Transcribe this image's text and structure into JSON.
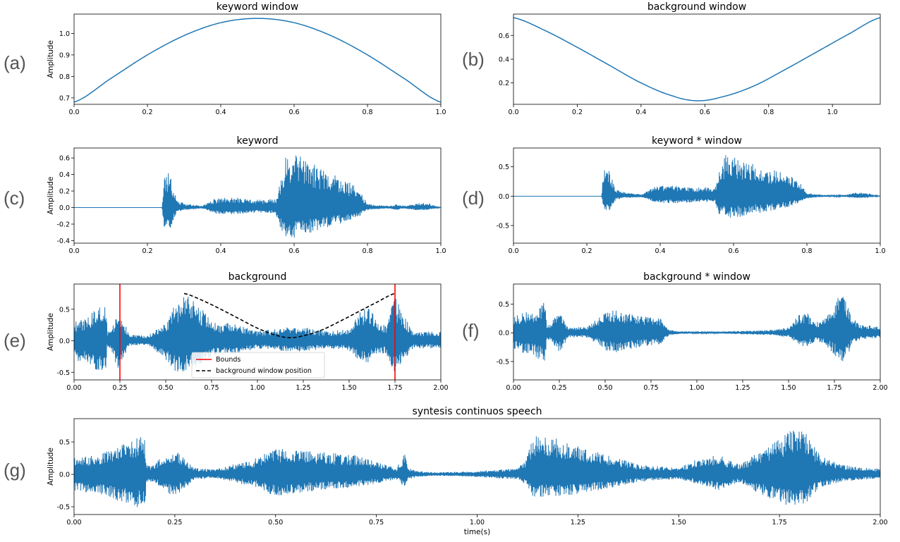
{
  "figure": {
    "colors": {
      "wave": "#1f77b4",
      "bounds": "#ff0000",
      "window_pos": "#000000",
      "axes": "#000000"
    }
  },
  "chart_data": [
    {
      "id": "a",
      "panel_label": "(a)",
      "type": "line",
      "title": "keyword window",
      "xlabel": "",
      "ylabel": "Amplitude",
      "xlim": [
        0,
        1
      ],
      "ylim": [
        0.67,
        1.09
      ],
      "xticks": [
        0,
        0.2,
        0.4,
        0.6,
        0.8,
        1.0
      ],
      "xtick_labels": [
        "0.0",
        "0.2",
        "0.4",
        "0.6",
        "0.8",
        "1.0"
      ],
      "yticks": [
        0.7,
        0.8,
        0.9,
        1.0
      ],
      "ytick_labels": [
        "0.7",
        "0.8",
        "0.9",
        "1.0"
      ],
      "series": [
        {
          "x": [
            0,
            0.1,
            0.2,
            0.3,
            0.4,
            0.5,
            0.6,
            0.7,
            0.8,
            0.9,
            1.0
          ],
          "y": [
            0.68,
            0.79,
            0.9,
            0.99,
            1.05,
            1.07,
            1.05,
            0.99,
            0.9,
            0.79,
            0.68
          ]
        }
      ]
    },
    {
      "id": "b",
      "panel_label": "(b)",
      "type": "line",
      "title": "background window",
      "xlabel": "",
      "ylabel": "",
      "xlim": [
        0,
        1.15
      ],
      "ylim": [
        0.02,
        0.78
      ],
      "xticks": [
        0,
        0.2,
        0.4,
        0.6,
        0.8,
        1.0
      ],
      "xtick_labels": [
        "0.0",
        "0.2",
        "0.4",
        "0.6",
        "0.8",
        "1.0"
      ],
      "yticks": [
        0.2,
        0.4,
        0.6
      ],
      "ytick_labels": [
        "0.2",
        "0.4",
        "0.6"
      ],
      "series": [
        {
          "x": [
            0,
            0.1,
            0.2,
            0.3,
            0.4,
            0.5,
            0.575,
            0.65,
            0.75,
            0.85,
            0.95,
            1.05,
            1.15
          ],
          "y": [
            0.75,
            0.64,
            0.5,
            0.35,
            0.2,
            0.09,
            0.05,
            0.08,
            0.17,
            0.31,
            0.46,
            0.61,
            0.75
          ]
        }
      ]
    },
    {
      "id": "c",
      "panel_label": "(c)",
      "type": "line",
      "title": "keyword",
      "xlabel": "",
      "ylabel": "Amplitude",
      "xlim": [
        0,
        1
      ],
      "ylim": [
        -0.43,
        0.72
      ],
      "xticks": [
        0,
        0.2,
        0.4,
        0.6,
        0.8,
        1.0
      ],
      "xtick_labels": [
        "0.0",
        "0.2",
        "0.4",
        "0.6",
        "0.8",
        "1.0"
      ],
      "yticks": [
        -0.4,
        -0.2,
        0.0,
        0.2,
        0.4,
        0.6
      ],
      "ytick_labels": [
        "-0.4",
        "-0.2",
        "0.0",
        "0.2",
        "0.4",
        "0.6"
      ],
      "envelope": {
        "x": [
          0,
          0.24,
          0.245,
          0.26,
          0.28,
          0.3,
          0.35,
          0.38,
          0.4,
          0.45,
          0.5,
          0.55,
          0.56,
          0.58,
          0.62,
          0.68,
          0.74,
          0.78,
          0.8,
          0.82,
          0.86,
          0.88,
          0.9,
          0.93,
          0.96,
          1.0
        ],
        "upper": [
          0,
          0,
          0.4,
          0.42,
          0.1,
          0.05,
          0.02,
          0.1,
          0.12,
          0.12,
          0.1,
          0.1,
          0.3,
          0.66,
          0.62,
          0.45,
          0.35,
          0.2,
          0.05,
          0.03,
          0.02,
          0.04,
          0.02,
          0.05,
          0.06,
          0.0
        ],
        "lower": [
          0,
          0,
          -0.28,
          -0.28,
          -0.05,
          -0.03,
          -0.01,
          -0.07,
          -0.08,
          -0.08,
          -0.06,
          -0.07,
          -0.25,
          -0.4,
          -0.35,
          -0.25,
          -0.18,
          -0.1,
          -0.03,
          -0.02,
          -0.01,
          -0.03,
          -0.01,
          -0.03,
          -0.03,
          0.0
        ]
      }
    },
    {
      "id": "d",
      "panel_label": "(d)",
      "type": "line",
      "title": "keyword * window",
      "xlabel": "",
      "ylabel": "",
      "xlim": [
        0,
        1
      ],
      "ylim": [
        -0.8,
        0.82
      ],
      "xticks": [
        0,
        0.2,
        0.4,
        0.6,
        0.8,
        1.0
      ],
      "xtick_labels": [
        "0.0",
        "0.2",
        "0.4",
        "0.6",
        "0.8",
        "1.0"
      ],
      "yticks": [
        -0.5,
        0.0,
        0.5
      ],
      "ytick_labels": [
        "-0.5",
        "0.0",
        "0.5"
      ],
      "envelope": {
        "x": [
          0,
          0.24,
          0.245,
          0.26,
          0.28,
          0.3,
          0.35,
          0.38,
          0.4,
          0.45,
          0.5,
          0.55,
          0.56,
          0.58,
          0.62,
          0.68,
          0.74,
          0.78,
          0.8,
          0.82,
          0.86,
          0.9,
          0.93,
          0.96,
          1.0
        ],
        "upper": [
          0,
          0,
          0.45,
          0.45,
          0.12,
          0.07,
          0.03,
          0.15,
          0.18,
          0.18,
          0.15,
          0.15,
          0.42,
          0.72,
          0.62,
          0.5,
          0.4,
          0.25,
          0.06,
          0.04,
          0.02,
          0.02,
          0.06,
          0.06,
          0.0
        ],
        "lower": [
          0,
          0,
          -0.25,
          -0.25,
          -0.06,
          -0.03,
          -0.02,
          -0.1,
          -0.12,
          -0.12,
          -0.1,
          -0.1,
          -0.3,
          -0.4,
          -0.35,
          -0.28,
          -0.2,
          -0.12,
          -0.04,
          -0.02,
          -0.01,
          -0.01,
          -0.03,
          -0.03,
          0.0
        ]
      }
    },
    {
      "id": "e",
      "panel_label": "(e)",
      "type": "line",
      "title": "background",
      "xlabel": "",
      "ylabel": "Amplitude",
      "xlim": [
        0,
        2
      ],
      "ylim": [
        -0.62,
        0.9
      ],
      "xticks": [
        0,
        0.25,
        0.5,
        0.75,
        1.0,
        1.25,
        1.5,
        1.75,
        2.0
      ],
      "xtick_labels": [
        "0.00",
        "0.25",
        "0.50",
        "0.75",
        "1.00",
        "1.25",
        "1.50",
        "1.75",
        "2.00"
      ],
      "yticks": [
        -0.5,
        0.0,
        0.5
      ],
      "ytick_labels": [
        "-0.5",
        "0.0",
        "0.5"
      ],
      "envelope": {
        "x": [
          0,
          0.05,
          0.1,
          0.15,
          0.175,
          0.18,
          0.2,
          0.24,
          0.26,
          0.3,
          0.4,
          0.5,
          0.55,
          0.6,
          0.65,
          0.7,
          0.75,
          0.8,
          0.85,
          0.9,
          1.0,
          1.1,
          1.2,
          1.3,
          1.4,
          1.5,
          1.55,
          1.6,
          1.65,
          1.7,
          1.75,
          1.8,
          1.85,
          1.9,
          2.0
        ],
        "upper": [
          0.3,
          0.35,
          0.45,
          0.6,
          0.65,
          0.15,
          0.15,
          0.45,
          0.4,
          0.1,
          0.08,
          0.3,
          0.6,
          0.75,
          0.65,
          0.5,
          0.35,
          0.25,
          0.3,
          0.25,
          0.15,
          0.2,
          0.22,
          0.2,
          0.15,
          0.2,
          0.45,
          0.6,
          0.3,
          0.25,
          0.7,
          0.4,
          0.15,
          0.15,
          0.15
        ],
        "lower": [
          -0.3,
          -0.35,
          -0.45,
          -0.55,
          -0.55,
          -0.1,
          -0.12,
          -0.5,
          -0.35,
          -0.08,
          -0.06,
          -0.3,
          -0.5,
          -0.5,
          -0.45,
          -0.35,
          -0.25,
          -0.2,
          -0.25,
          -0.2,
          -0.12,
          -0.15,
          -0.18,
          -0.15,
          -0.12,
          -0.15,
          -0.3,
          -0.35,
          -0.2,
          -0.2,
          -0.55,
          -0.3,
          -0.12,
          -0.12,
          -0.12
        ]
      },
      "bounds": [
        0.25,
        1.75
      ],
      "window_position": {
        "x": [
          0.6,
          0.7,
          0.8,
          0.9,
          1.0,
          1.1,
          1.175,
          1.25,
          1.35,
          1.45,
          1.55,
          1.65,
          1.75
        ],
        "y": [
          0.75,
          0.64,
          0.5,
          0.35,
          0.2,
          0.09,
          0.05,
          0.08,
          0.17,
          0.31,
          0.46,
          0.61,
          0.75
        ]
      },
      "legend": {
        "placement": "lower center",
        "entries": [
          "Bounds",
          "background window position"
        ]
      }
    },
    {
      "id": "f",
      "panel_label": "(f)",
      "type": "line",
      "title": "background * window",
      "xlabel": "",
      "ylabel": "",
      "xlim": [
        0,
        2
      ],
      "ylim": [
        -0.82,
        0.85
      ],
      "xticks": [
        0,
        0.25,
        0.5,
        0.75,
        1.0,
        1.25,
        1.5,
        1.75,
        2.0
      ],
      "xtick_labels": [
        "0.00",
        "0.25",
        "0.50",
        "0.75",
        "1.00",
        "1.25",
        "1.50",
        "1.75",
        "2.00"
      ],
      "yticks": [
        -0.5,
        0.0,
        0.5
      ],
      "ytick_labels": [
        "-0.5",
        "0.0",
        "0.5"
      ],
      "envelope": {
        "x": [
          0,
          0.05,
          0.1,
          0.15,
          0.175,
          0.18,
          0.2,
          0.22,
          0.25,
          0.3,
          0.4,
          0.5,
          0.55,
          0.6,
          0.7,
          0.8,
          0.85,
          0.9,
          1.0,
          1.1,
          1.2,
          1.3,
          1.4,
          1.5,
          1.55,
          1.6,
          1.65,
          1.7,
          1.75,
          1.8,
          1.85,
          1.9,
          2.0
        ],
        "upper": [
          0.3,
          0.35,
          0.4,
          0.5,
          0.6,
          0.15,
          0.15,
          0.3,
          0.35,
          0.1,
          0.1,
          0.35,
          0.4,
          0.35,
          0.3,
          0.25,
          0.05,
          0.03,
          0.02,
          0.02,
          0.03,
          0.04,
          0.05,
          0.1,
          0.3,
          0.35,
          0.2,
          0.25,
          0.55,
          0.7,
          0.25,
          0.15,
          0.1
        ],
        "lower": [
          -0.3,
          -0.35,
          -0.4,
          -0.5,
          -0.55,
          -0.12,
          -0.12,
          -0.25,
          -0.35,
          -0.08,
          -0.08,
          -0.3,
          -0.35,
          -0.3,
          -0.25,
          -0.2,
          -0.04,
          -0.02,
          -0.01,
          -0.01,
          -0.02,
          -0.03,
          -0.04,
          -0.08,
          -0.2,
          -0.25,
          -0.15,
          -0.2,
          -0.4,
          -0.6,
          -0.2,
          -0.12,
          -0.08
        ]
      }
    },
    {
      "id": "g",
      "panel_label": "(g)",
      "type": "line",
      "title": "syntesis continuos speech",
      "xlabel": "time(s)",
      "ylabel": "Amplitude",
      "xlim": [
        0,
        2
      ],
      "ylim": [
        -0.62,
        0.86
      ],
      "xticks": [
        0,
        0.25,
        0.5,
        0.75,
        1.0,
        1.25,
        1.5,
        1.75,
        2.0
      ],
      "xtick_labels": [
        "0.00",
        "0.25",
        "0.50",
        "0.75",
        "1.00",
        "1.25",
        "1.50",
        "1.75",
        "2.00"
      ],
      "yticks": [
        -0.5,
        0.0,
        0.5
      ],
      "ytick_labels": [
        "-0.5",
        "0.0",
        "0.5"
      ],
      "envelope": {
        "x": [
          0,
          0.05,
          0.1,
          0.15,
          0.175,
          0.18,
          0.2,
          0.22,
          0.25,
          0.3,
          0.35,
          0.45,
          0.5,
          0.55,
          0.6,
          0.7,
          0.8,
          0.82,
          0.83,
          0.85,
          0.9,
          1.0,
          1.1,
          1.12,
          1.14,
          1.2,
          1.3,
          1.4,
          1.5,
          1.55,
          1.6,
          1.65,
          1.7,
          1.75,
          1.8,
          1.85,
          1.9,
          2.0
        ],
        "upper": [
          0.25,
          0.3,
          0.4,
          0.55,
          0.62,
          0.15,
          0.15,
          0.3,
          0.38,
          0.1,
          0.08,
          0.25,
          0.4,
          0.4,
          0.35,
          0.3,
          0.1,
          0.35,
          0.1,
          0.05,
          0.03,
          0.05,
          0.1,
          0.2,
          0.6,
          0.55,
          0.35,
          0.15,
          0.1,
          0.25,
          0.3,
          0.15,
          0.35,
          0.55,
          0.8,
          0.3,
          0.15,
          0.08
        ],
        "lower": [
          -0.25,
          -0.3,
          -0.4,
          -0.5,
          -0.55,
          -0.12,
          -0.12,
          -0.25,
          -0.35,
          -0.08,
          -0.06,
          -0.2,
          -0.35,
          -0.3,
          -0.25,
          -0.2,
          -0.08,
          -0.2,
          -0.08,
          -0.04,
          -0.02,
          -0.04,
          -0.08,
          -0.15,
          -0.35,
          -0.35,
          -0.25,
          -0.12,
          -0.08,
          -0.15,
          -0.25,
          -0.12,
          -0.3,
          -0.45,
          -0.55,
          -0.2,
          -0.12,
          -0.06
        ]
      }
    }
  ]
}
